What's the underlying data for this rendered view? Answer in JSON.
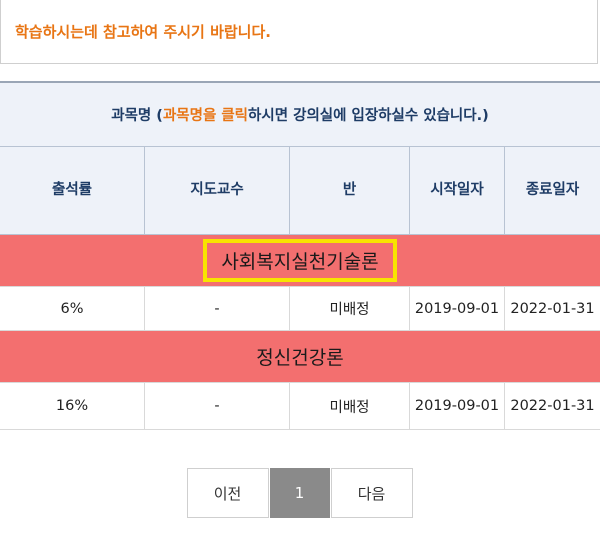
{
  "notice": "학습하시는데 참고하여 주시기 바랍니다.",
  "table": {
    "subject_hint": {
      "prefix": "과목명 (",
      "highlight": "과목명을 클릭",
      "suffix": "하시면 강의실에 입장하실수 있습니다.)"
    },
    "headers": {
      "attendance": "출석률",
      "advisor_line1": "지도",
      "advisor_line2": "교수",
      "class": "반",
      "start_line1": "시작",
      "start_line2": "일자",
      "end_line1": "종료",
      "end_line2": "일자"
    },
    "courses": [
      {
        "title": "사회복지실천기술론",
        "attendance": "6%",
        "advisor": "-",
        "class": "미배정",
        "start": "2019-09-01",
        "end": "2022-01-31"
      },
      {
        "title": "정신건강론",
        "attendance": "16%",
        "advisor": "-",
        "class": "미배정",
        "start": "2019-09-01",
        "end": "2022-01-31"
      }
    ]
  },
  "pagination": {
    "prev": "이전",
    "current": "1",
    "next": "다음"
  },
  "colors": {
    "accent_orange": "#e87514",
    "course_row_bg": "#f36f6f",
    "header_bg": "#eef2f9",
    "highlight_border": "#f8e400"
  }
}
